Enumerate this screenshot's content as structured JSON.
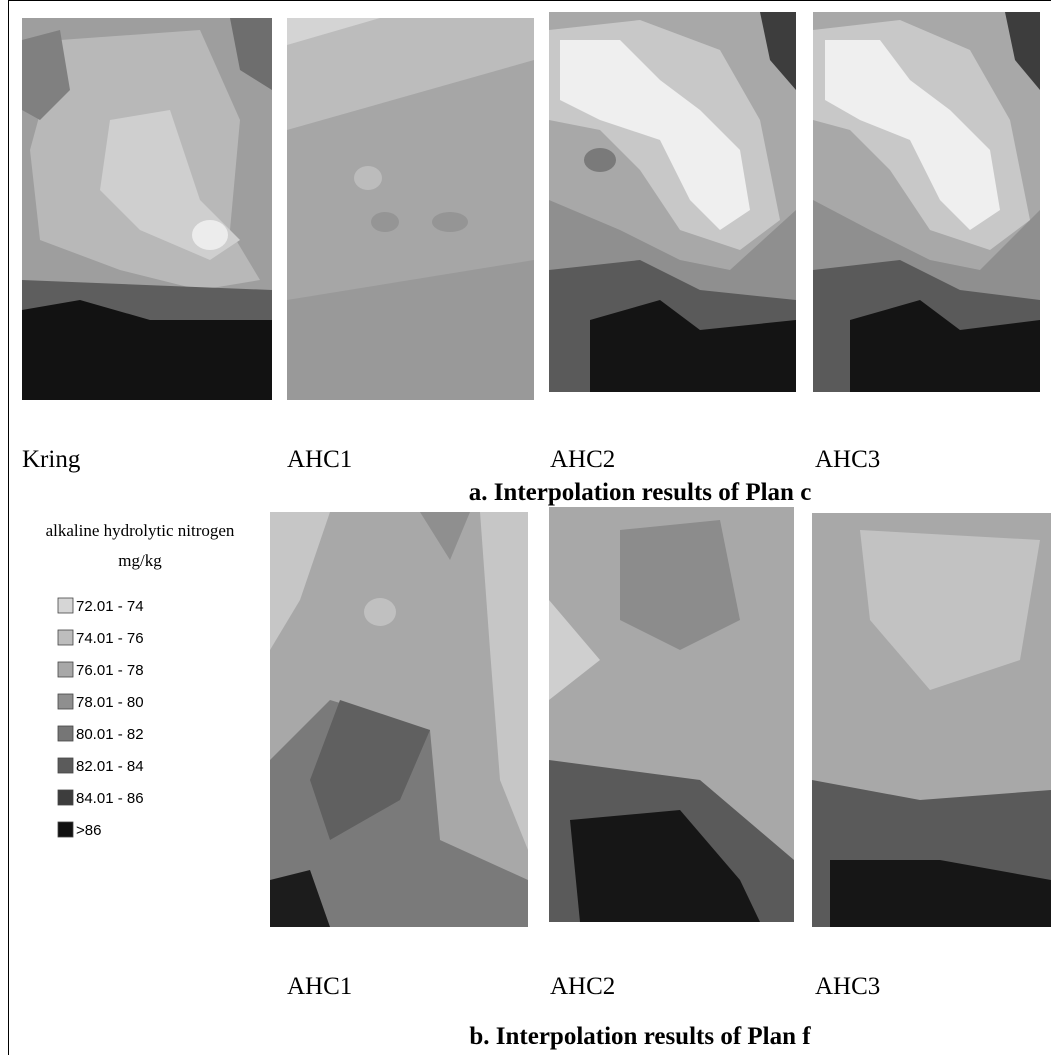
{
  "top_panel": {
    "maps": [
      {
        "label": "Kring"
      },
      {
        "label": "AHC1"
      },
      {
        "label": "AHC2"
      },
      {
        "label": "AHC3"
      }
    ],
    "caption": "a. Interpolation results of Plan c"
  },
  "bottom_panel": {
    "maps": [
      {
        "label": "AHC1"
      },
      {
        "label": "AHC2"
      },
      {
        "label": "AHC3"
      }
    ],
    "caption": "b. Interpolation results of Plan f"
  },
  "legend": {
    "title": "alkaline hydrolytic nitrogen",
    "unit": "mg/kg",
    "items": [
      {
        "label": "72.01 - 74",
        "color": "#d6d6d6"
      },
      {
        "label": "74.01 - 76",
        "color": "#bdbdbd"
      },
      {
        "label": "76.01 - 78",
        "color": "#a8a8a8"
      },
      {
        "label": "78.01 - 80",
        "color": "#8f8f8f"
      },
      {
        "label": "80.01 - 82",
        "color": "#767676"
      },
      {
        "label": "82.01 - 84",
        "color": "#5b5b5b"
      },
      {
        "label": "84.01 - 86",
        "color": "#3d3d3d"
      },
      {
        "label": ">86",
        "color": "#111111"
      }
    ]
  }
}
